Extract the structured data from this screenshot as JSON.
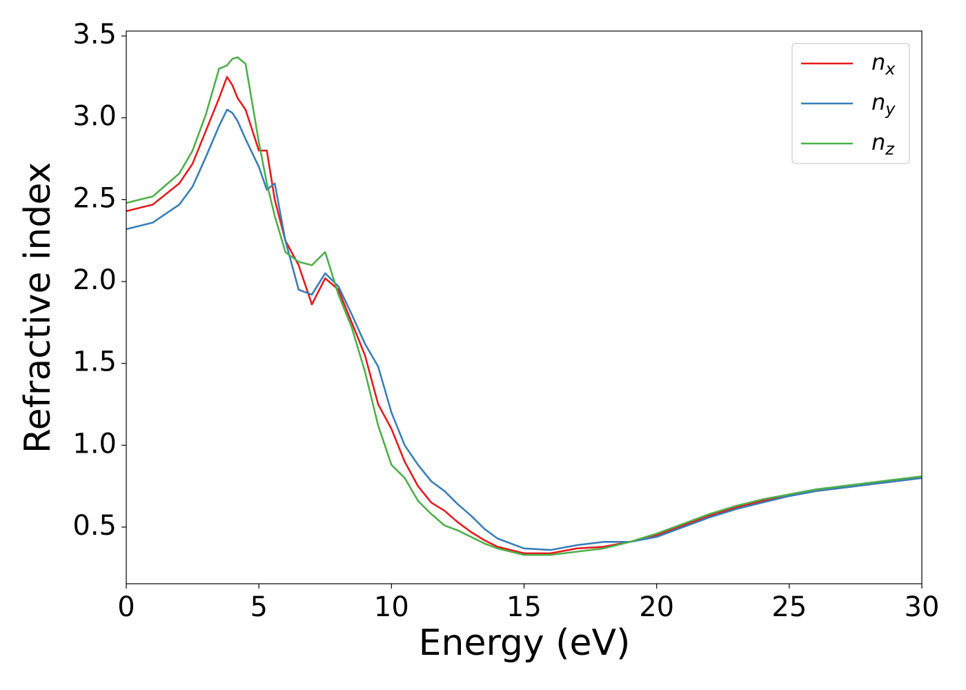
{
  "chart_data": {
    "type": "line",
    "xlabel": "Energy (eV)",
    "ylabel": "Refractive index",
    "x": [
      0,
      1,
      2,
      2.5,
      3,
      3.5,
      3.8,
      4,
      4.2,
      4.5,
      5,
      5.3,
      5.6,
      6,
      6.5,
      7,
      7.5,
      8,
      8.5,
      9,
      9.5,
      10,
      10.5,
      11,
      11.5,
      12,
      12.5,
      13,
      13.5,
      14,
      15,
      16,
      17,
      18,
      19,
      20,
      21,
      22,
      23,
      24,
      25,
      26,
      27,
      28,
      29,
      30
    ],
    "series": [
      {
        "name": "nx",
        "color": "#e41a1c",
        "values": [
          2.43,
          2.47,
          2.6,
          2.72,
          2.92,
          3.12,
          3.25,
          3.2,
          3.12,
          3.05,
          2.8,
          2.8,
          2.5,
          2.25,
          2.1,
          1.86,
          2.02,
          1.95,
          1.75,
          1.55,
          1.25,
          1.1,
          0.9,
          0.75,
          0.65,
          0.6,
          0.53,
          0.47,
          0.42,
          0.38,
          0.34,
          0.34,
          0.37,
          0.38,
          0.41,
          0.45,
          0.51,
          0.57,
          0.62,
          0.66,
          0.69,
          0.72,
          0.74,
          0.76,
          0.78,
          0.8
        ]
      },
      {
        "name": "ny",
        "color": "#377eb8",
        "values": [
          2.32,
          2.36,
          2.47,
          2.58,
          2.76,
          2.95,
          3.05,
          3.03,
          2.98,
          2.87,
          2.7,
          2.56,
          2.6,
          2.25,
          1.95,
          1.92,
          2.05,
          1.97,
          1.8,
          1.62,
          1.48,
          1.2,
          1.0,
          0.88,
          0.78,
          0.72,
          0.64,
          0.57,
          0.49,
          0.43,
          0.37,
          0.36,
          0.39,
          0.41,
          0.41,
          0.44,
          0.5,
          0.56,
          0.61,
          0.65,
          0.69,
          0.72,
          0.74,
          0.76,
          0.78,
          0.8
        ]
      },
      {
        "name": "nz",
        "color": "#4daf4a",
        "values": [
          2.48,
          2.52,
          2.66,
          2.8,
          3.02,
          3.3,
          3.32,
          3.36,
          3.37,
          3.33,
          2.85,
          2.6,
          2.4,
          2.18,
          2.12,
          2.1,
          2.18,
          1.92,
          1.72,
          1.45,
          1.12,
          0.88,
          0.8,
          0.66,
          0.58,
          0.51,
          0.48,
          0.44,
          0.4,
          0.37,
          0.33,
          0.33,
          0.35,
          0.37,
          0.41,
          0.46,
          0.52,
          0.58,
          0.63,
          0.67,
          0.7,
          0.73,
          0.75,
          0.77,
          0.79,
          0.81
        ]
      }
    ],
    "xlim": [
      0,
      30
    ],
    "xticks": [
      0,
      5,
      10,
      15,
      20,
      25,
      30
    ],
    "ylim": [
      0.154,
      3.53
    ],
    "yticks": [
      0.5,
      1.0,
      1.5,
      2.0,
      2.5,
      3.0,
      3.5
    ],
    "grid": false,
    "legend": "upper right"
  }
}
